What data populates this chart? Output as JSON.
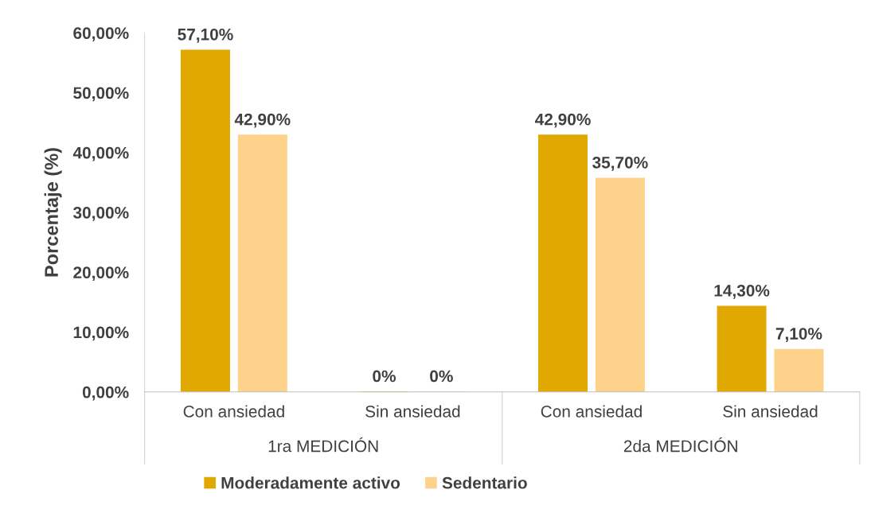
{
  "chart_data": {
    "type": "bar",
    "categories": [
      "Con ansiedad",
      "Sin ansiedad",
      "Con ansiedad",
      "Sin ansiedad"
    ],
    "ylabel": "Porcentaje (%)",
    "annotations": [
      "1ra MEDICIÓN",
      "2da MEDICIÓN"
    ],
    "series": [
      {
        "name": "Moderadamente activo",
        "color": "#e0a800",
        "values": [
          57.1,
          0,
          42.9,
          14.3
        ],
        "value_labels": [
          "57,10%",
          "0%",
          "42,90%",
          "14,30%"
        ]
      },
      {
        "name": "Sedentario",
        "color": "#fdd28a",
        "values": [
          42.9,
          0,
          35.7,
          7.1
        ],
        "value_labels": [
          "42,90%",
          "0%",
          "35,70%",
          "7,10%"
        ]
      }
    ],
    "ylim": [
      0,
      60
    ],
    "yticks": [
      {
        "value": 0,
        "label": "0,00%"
      },
      {
        "value": 10,
        "label": "10,00%"
      },
      {
        "value": 20,
        "label": "20,00%"
      },
      {
        "value": 30,
        "label": "30,00%"
      },
      {
        "value": 40,
        "label": "40,00%"
      },
      {
        "value": 50,
        "label": "50,00%"
      },
      {
        "value": 60,
        "label": "60,00%"
      }
    ],
    "grid": false,
    "legend": "bottom"
  }
}
